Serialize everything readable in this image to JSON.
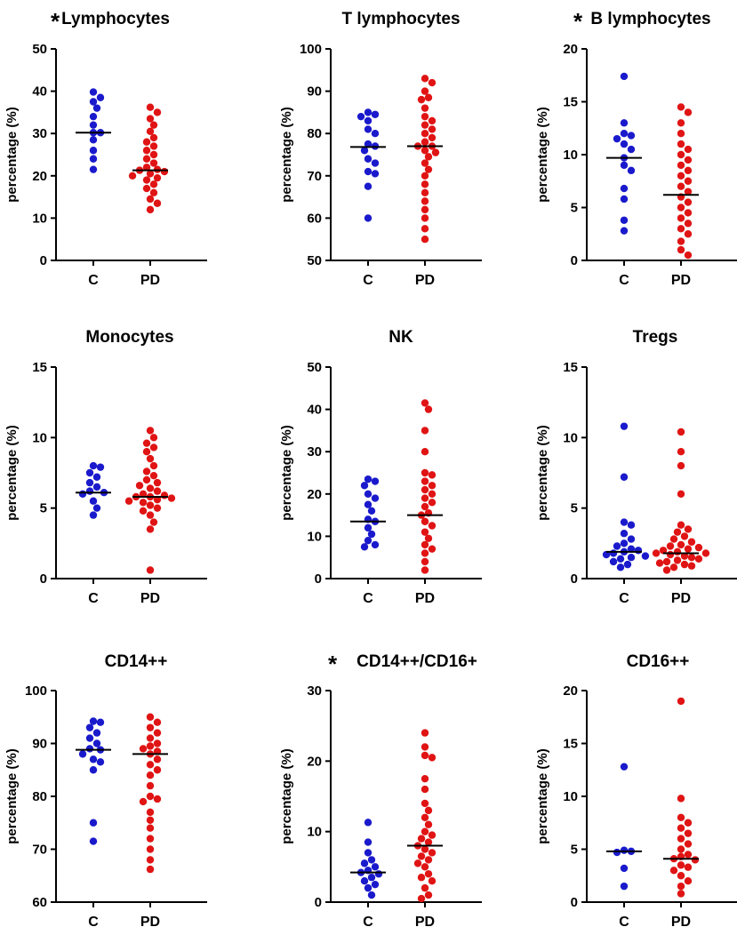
{
  "colors": {
    "C": "#1a1acc",
    "PD": "#e01414",
    "axis": "#000000",
    "median": "#000000"
  },
  "chart_data": [
    {
      "type": "scatter",
      "title": "Lymphocytes",
      "significant": true,
      "ylabel": "percentage (%)",
      "categories": [
        "C",
        "PD"
      ],
      "ylim": [
        0,
        50
      ],
      "yticks": [
        0,
        10,
        20,
        30,
        40,
        50
      ],
      "series": [
        {
          "name": "C",
          "median": 30.2,
          "values": [
            21.5,
            24,
            26,
            28.5,
            30.2,
            30.2,
            32,
            34,
            36,
            37.5,
            38.5,
            39.8
          ]
        },
        {
          "name": "PD",
          "median": 21.3,
          "values": [
            12,
            13.5,
            14.5,
            16,
            17,
            18,
            19,
            19.5,
            20,
            20.5,
            21,
            21.3,
            21.5,
            22,
            23,
            24,
            25,
            26,
            27,
            28,
            29,
            30.5,
            32,
            33.5,
            35,
            36.2
          ]
        }
      ]
    },
    {
      "type": "scatter",
      "title": "T lymphocytes",
      "significant": false,
      "ylabel": "percentage (%)",
      "categories": [
        "C",
        "PD"
      ],
      "ylim": [
        50,
        100
      ],
      "yticks": [
        50,
        60,
        70,
        80,
        90,
        100
      ],
      "series": [
        {
          "name": "C",
          "median": 76.8,
          "values": [
            60,
            67.5,
            70.5,
            71,
            73,
            74,
            76,
            77,
            77.5,
            80,
            81,
            83,
            84,
            84.5,
            85
          ]
        },
        {
          "name": "PD",
          "median": 77,
          "values": [
            55,
            57.5,
            60,
            62,
            64,
            66,
            68,
            70,
            71.5,
            73,
            74.5,
            75.5,
            76,
            77,
            77,
            78,
            79,
            80,
            81,
            82,
            83,
            84,
            86,
            88,
            88.5,
            90,
            92,
            93
          ]
        }
      ]
    },
    {
      "type": "scatter",
      "title": "B lymphocytes",
      "significant": true,
      "ylabel": "percentage (%)",
      "categories": [
        "C",
        "PD"
      ],
      "ylim": [
        0,
        20
      ],
      "yticks": [
        0,
        5,
        10,
        15,
        20
      ],
      "series": [
        {
          "name": "C",
          "median": 9.7,
          "values": [
            2.8,
            3.8,
            5.8,
            6.8,
            8.5,
            9,
            9.7,
            10.5,
            11,
            11.5,
            11.8,
            12,
            13,
            17.4
          ]
        },
        {
          "name": "PD",
          "median": 6.2,
          "values": [
            0.5,
            1,
            1.8,
            2.5,
            3,
            3.5,
            4,
            4.5,
            5,
            5.5,
            6,
            6.5,
            7,
            7.5,
            8,
            8.5,
            9,
            9.5,
            10,
            10.5,
            11,
            12,
            13,
            14,
            14.5
          ]
        }
      ]
    },
    {
      "type": "scatter",
      "title": "Monocytes",
      "significant": false,
      "ylabel": "percentage (%)",
      "categories": [
        "C",
        "PD"
      ],
      "ylim": [
        0,
        15
      ],
      "yticks": [
        0,
        5,
        10,
        15
      ],
      "series": [
        {
          "name": "C",
          "median": 6.1,
          "values": [
            4.5,
            5,
            5.5,
            6,
            6.1,
            6.2,
            6.5,
            6.8,
            7.2,
            7.5,
            7.9,
            8
          ]
        },
        {
          "name": "PD",
          "median": 5.8,
          "values": [
            0.6,
            3.5,
            4,
            4.5,
            4.8,
            5,
            5.2,
            5.4,
            5.5,
            5.6,
            5.7,
            5.8,
            5.8,
            5.9,
            6,
            6.2,
            6.4,
            6.6,
            6.8,
            7,
            7.3,
            7.6,
            8,
            8.5,
            9,
            9.3,
            9.6,
            10,
            10.5
          ]
        }
      ]
    },
    {
      "type": "scatter",
      "title": "NK",
      "significant": false,
      "ylabel": "percentage (%)",
      "categories": [
        "C",
        "PD"
      ],
      "ylim": [
        0,
        50
      ],
      "yticks": [
        0,
        10,
        20,
        30,
        40,
        50
      ],
      "series": [
        {
          "name": "C",
          "median": 13.5,
          "values": [
            7.5,
            8,
            9,
            10.5,
            12,
            13.5,
            14,
            16,
            17.5,
            19,
            20,
            22,
            23,
            23.5
          ]
        },
        {
          "name": "PD",
          "median": 15,
          "values": [
            2,
            4,
            6,
            7,
            8,
            9.5,
            11,
            12.5,
            13.5,
            15,
            15.5,
            17,
            18,
            19,
            20,
            21,
            22,
            23,
            24.5,
            25,
            30,
            35,
            40,
            41.5
          ]
        }
      ]
    },
    {
      "type": "scatter",
      "title": "Tregs",
      "significant": false,
      "ylabel": "percentage (%)",
      "categories": [
        "C",
        "PD"
      ],
      "ylim": [
        0,
        15
      ],
      "yticks": [
        0,
        5,
        10,
        15
      ],
      "series": [
        {
          "name": "C",
          "median": 1.9,
          "values": [
            0.8,
            1,
            1.2,
            1.4,
            1.5,
            1.6,
            1.7,
            1.8,
            1.9,
            2,
            2.1,
            2.3,
            2.5,
            2.8,
            3.2,
            3.8,
            4,
            7.2,
            10.8
          ]
        },
        {
          "name": "PD",
          "median": 1.8,
          "values": [
            0.6,
            0.8,
            0.9,
            1,
            1.1,
            1.2,
            1.3,
            1.4,
            1.5,
            1.6,
            1.7,
            1.8,
            1.8,
            1.9,
            2,
            2.1,
            2.2,
            2.3,
            2.4,
            2.6,
            2.8,
            3,
            3.3,
            3.5,
            3.8,
            6,
            8,
            9,
            10.4
          ]
        }
      ]
    },
    {
      "type": "scatter",
      "title": "CD14++",
      "significant": false,
      "ylabel": "percentage (%)",
      "categories": [
        "C",
        "PD"
      ],
      "ylim": [
        60,
        100
      ],
      "yticks": [
        60,
        70,
        80,
        90,
        100
      ],
      "series": [
        {
          "name": "C",
          "median": 88.8,
          "values": [
            71.5,
            75,
            85,
            86.5,
            87,
            88,
            88.8,
            89,
            90,
            91,
            92,
            93,
            94,
            94.2
          ]
        },
        {
          "name": "PD",
          "median": 88,
          "values": [
            66.2,
            68,
            70,
            72,
            74,
            75.5,
            77,
            79,
            79.5,
            80,
            82,
            84,
            85,
            86,
            87,
            88,
            88.5,
            89,
            89.5,
            90,
            91,
            92,
            93,
            94,
            95
          ]
        }
      ]
    },
    {
      "type": "scatter",
      "title": "CD14++/CD16+",
      "significant": true,
      "ylabel": "percentage (%)",
      "categories": [
        "C",
        "PD"
      ],
      "ylim": [
        0,
        30
      ],
      "yticks": [
        0,
        10,
        20,
        30
      ],
      "series": [
        {
          "name": "C",
          "median": 4.2,
          "values": [
            1,
            2,
            2.5,
            3,
            3.5,
            4,
            4.2,
            4.5,
            5,
            5.5,
            6,
            7,
            8.5,
            11.3
          ]
        },
        {
          "name": "PD",
          "median": 8,
          "values": [
            0.5,
            1,
            2,
            3,
            3.5,
            4,
            5,
            5.5,
            6,
            6.5,
            7,
            7.5,
            8,
            8.5,
            9,
            9.5,
            10,
            11,
            12,
            13,
            14,
            16,
            17.5,
            20.5,
            20.8,
            22,
            24
          ]
        }
      ]
    },
    {
      "type": "scatter",
      "title": "CD16++",
      "significant": false,
      "ylabel": "percentage (%)",
      "categories": [
        "C",
        "PD"
      ],
      "ylim": [
        0,
        20
      ],
      "yticks": [
        0,
        5,
        10,
        15,
        20
      ],
      "series": [
        {
          "name": "C",
          "median": 4.8,
          "values": [
            1.5,
            3.2,
            4.7,
            4.8,
            4.9,
            12.8
          ]
        },
        {
          "name": "PD",
          "median": 4.1,
          "values": [
            0.8,
            1.5,
            2,
            2.5,
            3,
            3.3,
            3.5,
            4,
            4.1,
            4.3,
            4.5,
            5,
            5.5,
            6,
            6.5,
            7,
            7.5,
            8,
            9.8,
            19
          ]
        }
      ]
    }
  ]
}
